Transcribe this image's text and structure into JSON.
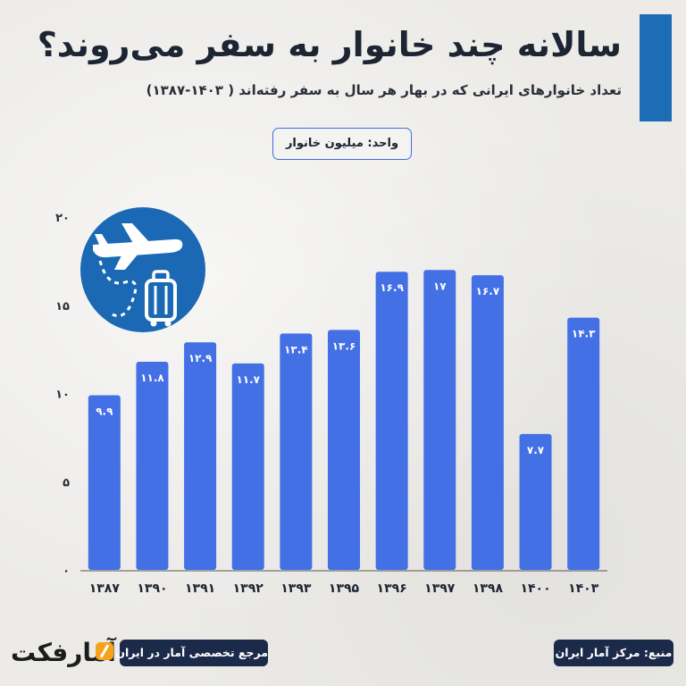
{
  "header": {
    "title": "سالانه چند خانوار به سفر می‌روند؟",
    "subtitle": "تعداد خانوارهای ایرانی که در بهار هر سال به سفر رفته‌اند ( ۱۴۰۳-۱۳۸۷)",
    "unit": "واحد: میلیون خانوار"
  },
  "colors": {
    "bar": "#4470e6",
    "accent": "#1d6cb6",
    "dark": "#1c2a4a",
    "badge": "#1b69b4"
  },
  "chart_data": {
    "type": "bar",
    "categories": [
      "۱۳۸۷",
      "۱۳۹۰",
      "۱۳۹۱",
      "۱۳۹۲",
      "۱۳۹۳",
      "۱۳۹۵",
      "۱۳۹۶",
      "۱۳۹۷",
      "۱۳۹۸",
      "۱۴۰۰",
      "۱۴۰۳"
    ],
    "values": [
      9.9,
      11.8,
      12.9,
      11.7,
      13.4,
      13.6,
      16.9,
      17,
      16.7,
      7.7,
      14.3
    ],
    "value_labels": [
      "۹.۹",
      "۱۱.۸",
      "۱۲.۹",
      "۱۱.۷",
      "۱۳.۴",
      "۱۳.۶",
      "۱۶.۹",
      "۱۷",
      "۱۶.۷",
      "۷.۷",
      "۱۴.۳"
    ],
    "yticks": [
      "۰",
      "۵",
      "۱۰",
      "۱۵",
      "۲۰"
    ],
    "ylim": [
      0,
      20
    ],
    "grid": false
  },
  "footer": {
    "logo": "آمارفکت",
    "reference": "مرجع تخصصی آمار در ایران",
    "source": "منبع: مرکز آمار ایران"
  },
  "icon": "plane-luggage-icon"
}
